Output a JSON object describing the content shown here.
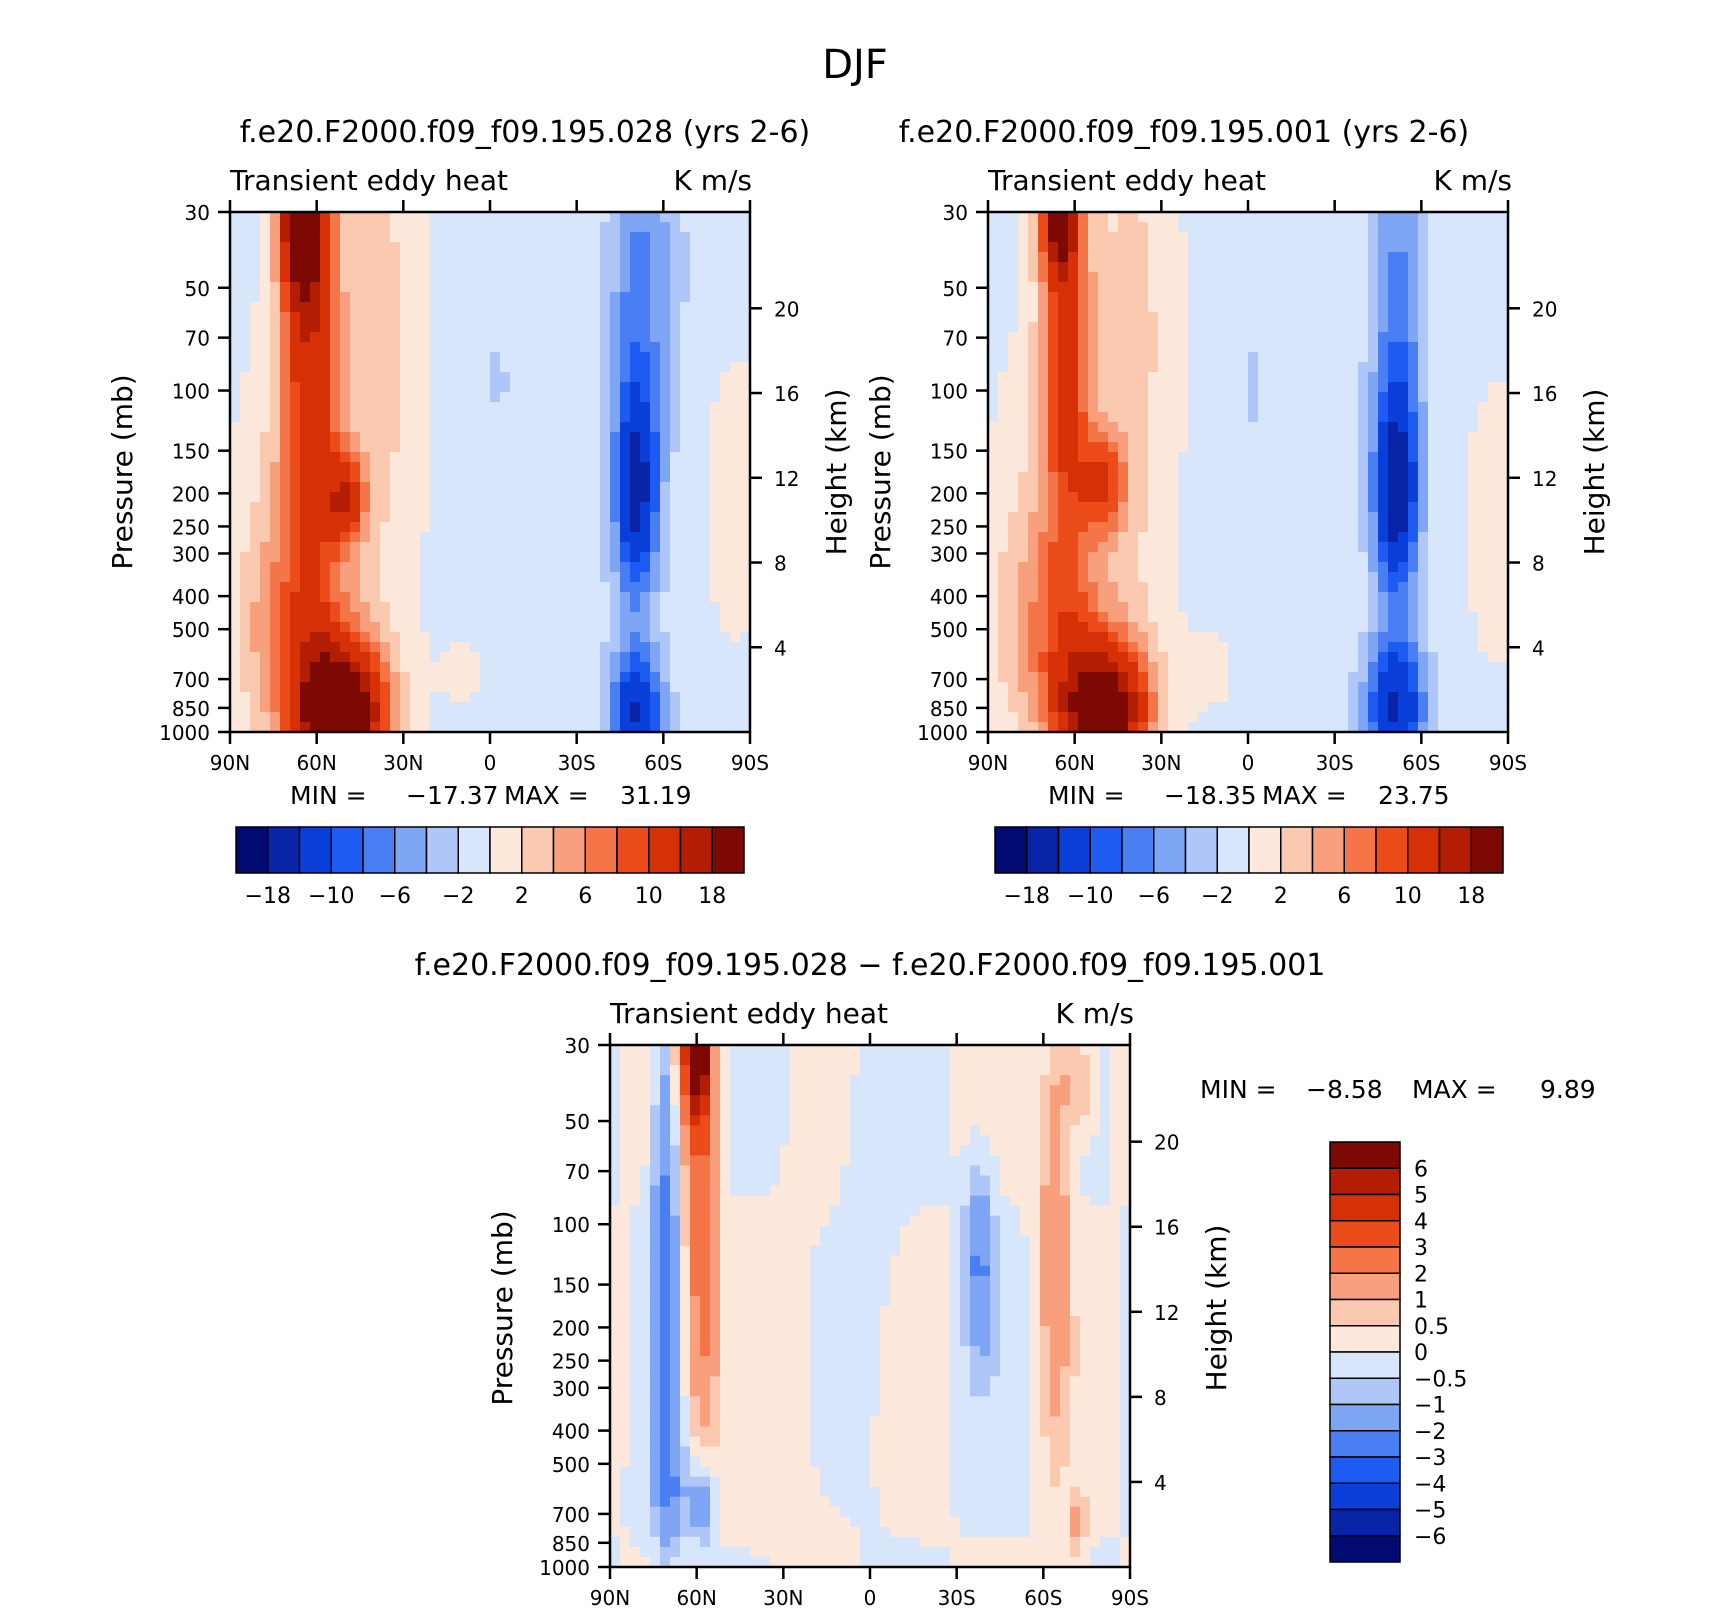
{
  "chart_data": {
    "figure_title": "DJF",
    "shared": {
      "field_label": "Transient eddy heat",
      "units": "K m/s",
      "ylabel_left": "Pressure (mb)",
      "ylabel_right": "Height (km)",
      "pressure_ticks": [
        "30",
        "50",
        "70",
        "100",
        "150",
        "200",
        "250",
        "300",
        "400",
        "500",
        "700",
        "850",
        "1000"
      ],
      "pressure_values": [
        30,
        50,
        70,
        100,
        150,
        200,
        250,
        300,
        400,
        500,
        700,
        850,
        1000
      ],
      "height_ticks": [
        "20",
        "16",
        "12",
        "8",
        "4"
      ],
      "height_values": [
        20,
        16,
        12,
        8,
        4
      ],
      "lat_ticks": [
        "90N",
        "60N",
        "30N",
        "0",
        "30S",
        "60S",
        "90S"
      ],
      "lat_values": [
        90,
        60,
        30,
        0,
        -30,
        -60,
        -90
      ]
    },
    "panels": [
      {
        "type": "contour",
        "title": "f.e20.F2000.f09_f09.195.028 (yrs 2-6)",
        "min_label": "MIN =",
        "min_value": "−17.37",
        "max_label": "MAX =",
        "max_value": "31.19",
        "levels": [
          -18,
          -14,
          -10,
          -8,
          -6,
          -4,
          -2,
          0,
          2,
          4,
          6,
          8,
          10,
          14,
          18
        ],
        "colorbar_labels": [
          "−18",
          "−10",
          "−6",
          "−2",
          "2",
          "6",
          "10",
          "18"
        ],
        "colors": [
          "#000a70",
          "#0a24a8",
          "#0a3fd9",
          "#1e5bf3",
          "#4a7ff3",
          "#7fa6f5",
          "#afc7f8",
          "#d7e6fb",
          "#fde9dc",
          "#fbc8b0",
          "#f8a07e",
          "#f47548",
          "#ec4b1a",
          "#d63006",
          "#b31d04",
          "#7c0a02"
        ]
      },
      {
        "type": "contour",
        "title": "f.e20.F2000.f09_f09.195.001 (yrs 2-6)",
        "min_label": "MIN =",
        "min_value": "−18.35",
        "max_label": "MAX =",
        "max_value": "23.75",
        "levels": [
          -18,
          -14,
          -10,
          -8,
          -6,
          -4,
          -2,
          0,
          2,
          4,
          6,
          8,
          10,
          14,
          18
        ],
        "colorbar_labels": [
          "−18",
          "−10",
          "−6",
          "−2",
          "2",
          "6",
          "10",
          "18"
        ],
        "colors": [
          "#000a70",
          "#0a24a8",
          "#0a3fd9",
          "#1e5bf3",
          "#4a7ff3",
          "#7fa6f5",
          "#afc7f8",
          "#d7e6fb",
          "#fde9dc",
          "#fbc8b0",
          "#f8a07e",
          "#f47548",
          "#ec4b1a",
          "#d63006",
          "#b31d04",
          "#7c0a02"
        ]
      },
      {
        "type": "contour",
        "title": "f.e20.F2000.f09_f09.195.028 − f.e20.F2000.f09_f09.195.001",
        "min_label": "MIN =",
        "min_value": "−8.58",
        "max_label": "MAX =",
        "max_value": "9.89",
        "levels": [
          -6,
          -5,
          -4,
          -3,
          -2,
          -1,
          -0.5,
          0,
          0.5,
          1,
          2,
          3,
          4,
          5,
          6
        ],
        "colorbar_labels": [
          "6",
          "5",
          "4",
          "3",
          "2",
          "1",
          "0.5",
          "0",
          "−0.5",
          "−1",
          "−2",
          "−3",
          "−4",
          "−5",
          "−6"
        ],
        "colors": [
          "#000a70",
          "#0a24a8",
          "#0a3fd9",
          "#1e5bf3",
          "#4a7ff3",
          "#7fa6f5",
          "#afc7f8",
          "#d7e6fb",
          "#fde9dc",
          "#fbc8b0",
          "#f8a07e",
          "#f47548",
          "#ec4b1a",
          "#d63006",
          "#b31d04",
          "#7c0a02"
        ]
      }
    ]
  }
}
